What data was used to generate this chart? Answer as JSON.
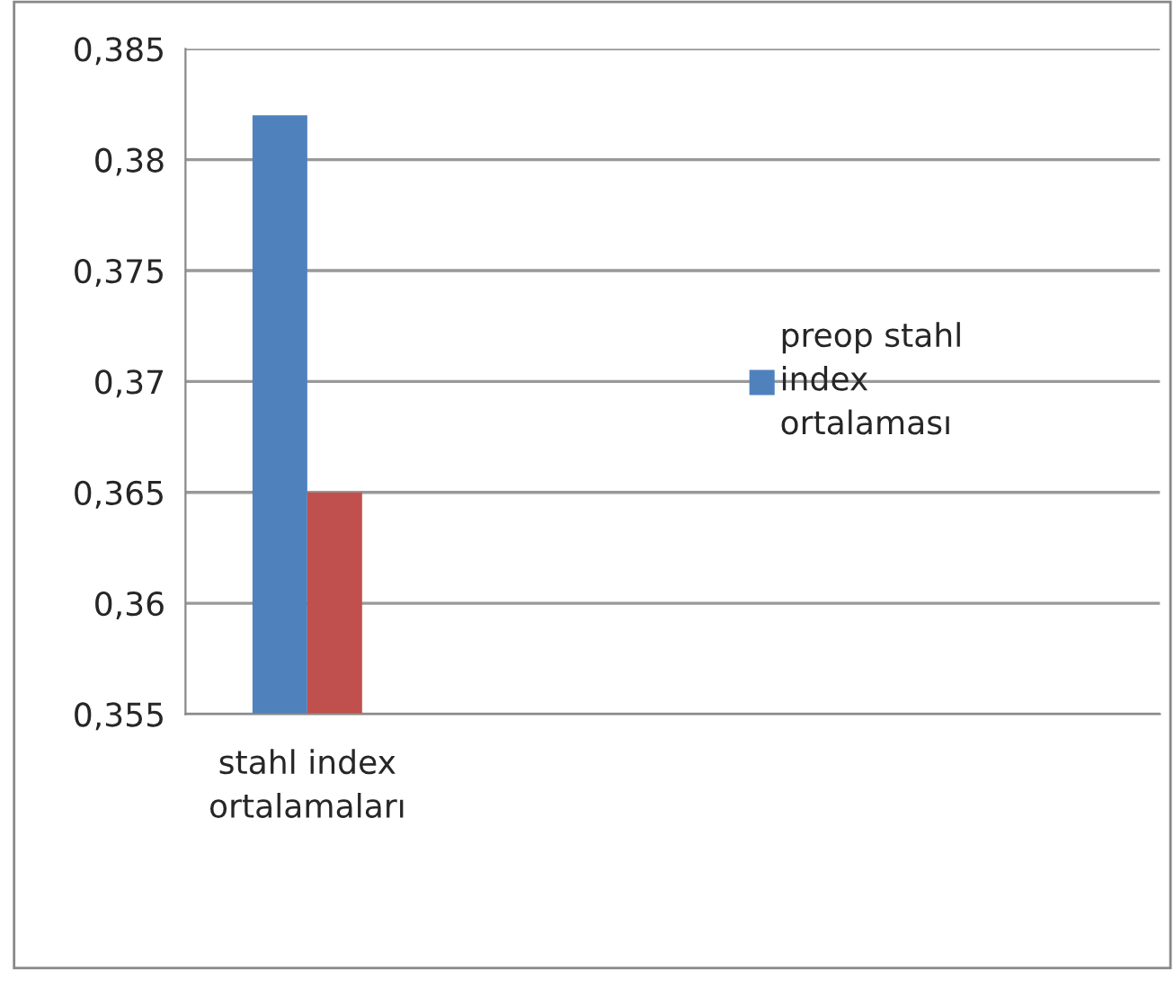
{
  "chart_data": {
    "type": "bar",
    "categories": [
      "stahl index ortalamaları",
      null,
      null,
      null
    ],
    "series": [
      {
        "name": "preop stahl index ortalaması",
        "color": "#4f81bd",
        "values": [
          0.382,
          null,
          null,
          null
        ]
      },
      {
        "color": "#c0504d",
        "values": [
          0.365,
          null,
          null,
          null
        ]
      }
    ],
    "ylim": [
      0.355,
      0.385
    ],
    "yticks": [
      {
        "value": 0.355,
        "label": "0,355"
      },
      {
        "value": 0.36,
        "label": "0,36"
      },
      {
        "value": 0.365,
        "label": "0,365"
      },
      {
        "value": 0.37,
        "label": "0,37"
      },
      {
        "value": 0.375,
        "label": "0,375"
      },
      {
        "value": 0.38,
        "label": "0,38"
      },
      {
        "value": 0.385,
        "label": "0,385"
      }
    ],
    "grid": "y",
    "legend": "right"
  }
}
